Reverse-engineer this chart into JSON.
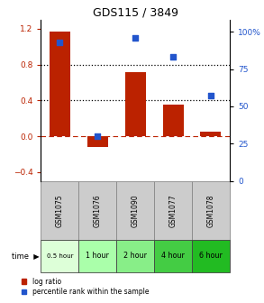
{
  "title": "GDS115 / 3849",
  "categories": [
    "GSM1075",
    "GSM1076",
    "GSM1090",
    "GSM1077",
    "GSM1078"
  ],
  "time_labels": [
    "0.5 hour",
    "1 hour",
    "2 hour",
    "4 hour",
    "6 hour"
  ],
  "log_ratios": [
    1.17,
    -0.12,
    0.72,
    0.35,
    0.05
  ],
  "percentile_ranks": [
    93,
    30,
    96,
    83,
    57
  ],
  "bar_color": "#bb2200",
  "dot_color": "#2255cc",
  "left_ylim": [
    -0.5,
    1.3
  ],
  "right_ylim": [
    0,
    108
  ],
  "left_yticks": [
    -0.4,
    0.0,
    0.4,
    0.8,
    1.2
  ],
  "right_yticks": [
    0,
    25,
    50,
    75,
    100
  ],
  "right_yticklabels": [
    "0",
    "25",
    "50",
    "75",
    "100%"
  ],
  "hline_y": [
    0.4,
    0.8
  ],
  "zero_line_y": 0.0,
  "legend_log_label": "log ratio",
  "legend_pct_label": "percentile rank within the sample",
  "bar_width": 0.55,
  "sample_bg": "#cccccc",
  "time_colors": [
    "#ddffd8",
    "#aaffaa",
    "#88ee88",
    "#44cc44",
    "#22bb22"
  ],
  "bg_color": "#ffffff"
}
